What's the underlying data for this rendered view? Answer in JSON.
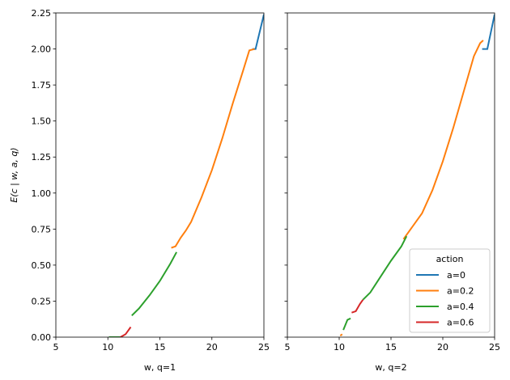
{
  "chart_data": [
    {
      "type": "line",
      "xlabel": "w, q=1",
      "ylabel": "E(c | w, a, q)",
      "xlim": [
        5,
        25
      ],
      "xticks": [
        5,
        10,
        15,
        20,
        25
      ],
      "ylim": [
        0,
        2.25
      ],
      "yticks": [
        {
          "value": 0,
          "label": "0.00"
        },
        {
          "value": 0.25,
          "label": "0.25"
        },
        {
          "value": 0.5,
          "label": "0.50"
        },
        {
          "value": 0.75,
          "label": "0.75"
        },
        {
          "value": 1,
          "label": "1.00"
        },
        {
          "value": 1.25,
          "label": "1.25"
        },
        {
          "value": 1.5,
          "label": "1.50"
        },
        {
          "value": 1.75,
          "label": "1.75"
        },
        {
          "value": 2,
          "label": "2.00"
        },
        {
          "value": 2.25,
          "label": "2.25"
        }
      ],
      "series": [
        {
          "color": "#1f77b4",
          "x": [
            23.9,
            24.2,
            25
          ],
          "values": [
            2.0,
            2.0,
            2.24
          ]
        },
        {
          "color": "#ff7f0e",
          "x": [
            16.1,
            16.5,
            17,
            17.5,
            18,
            19,
            20,
            21,
            22,
            23,
            23.6,
            24.1
          ],
          "values": [
            0.62,
            0.63,
            0.69,
            0.74,
            0.8,
            0.97,
            1.16,
            1.38,
            1.62,
            1.85,
            1.99,
            2.0
          ]
        },
        {
          "color": "#2ca02c",
          "x": [
            10.1,
            11.2,
            null,
            12.3,
            13,
            14,
            15,
            16,
            16.6
          ],
          "values": [
            0,
            0,
            null,
            0.15,
            0.2,
            0.29,
            0.39,
            0.51,
            0.59
          ]
        },
        {
          "color": "#d62728",
          "x": [
            11.2,
            11.7,
            12.2
          ],
          "values": [
            0,
            0.02,
            0.07
          ]
        }
      ]
    },
    {
      "type": "line",
      "xlabel": "w, q=2",
      "sharey": true,
      "xlim": [
        5,
        25
      ],
      "xticks": [
        5,
        10,
        15,
        20,
        25
      ],
      "legend": "lower right",
      "legend_title": "action",
      "series": [
        {
          "name": "a=0",
          "color": "#1f77b4",
          "x": [
            23.8,
            24.3,
            25
          ],
          "values": [
            2.0,
            2.0,
            2.24
          ]
        },
        {
          "name": "a=0.2",
          "color": "#ff7f0e",
          "x": [
            10.1,
            10.3,
            null,
            16.2,
            17,
            18,
            19,
            20,
            21,
            22,
            23,
            23.6,
            23.9
          ],
          "values": [
            0.01,
            0.02,
            null,
            0.68,
            0.76,
            0.86,
            1.02,
            1.22,
            1.45,
            1.7,
            1.95,
            2.04,
            2.06
          ]
        },
        {
          "name": "a=0.4",
          "color": "#2ca02c",
          "x": [
            10.4,
            10.8,
            11.1,
            null,
            12.3,
            13,
            14,
            15,
            16,
            16.5
          ],
          "values": [
            0.05,
            0.12,
            0.13,
            null,
            0.26,
            0.31,
            0.42,
            0.53,
            0.63,
            0.7
          ]
        },
        {
          "name": "a=0.6",
          "color": "#d62728",
          "x": [
            11.2,
            11.6,
            12,
            12.3
          ],
          "values": [
            0.17,
            0.18,
            0.23,
            0.26
          ]
        }
      ]
    }
  ]
}
